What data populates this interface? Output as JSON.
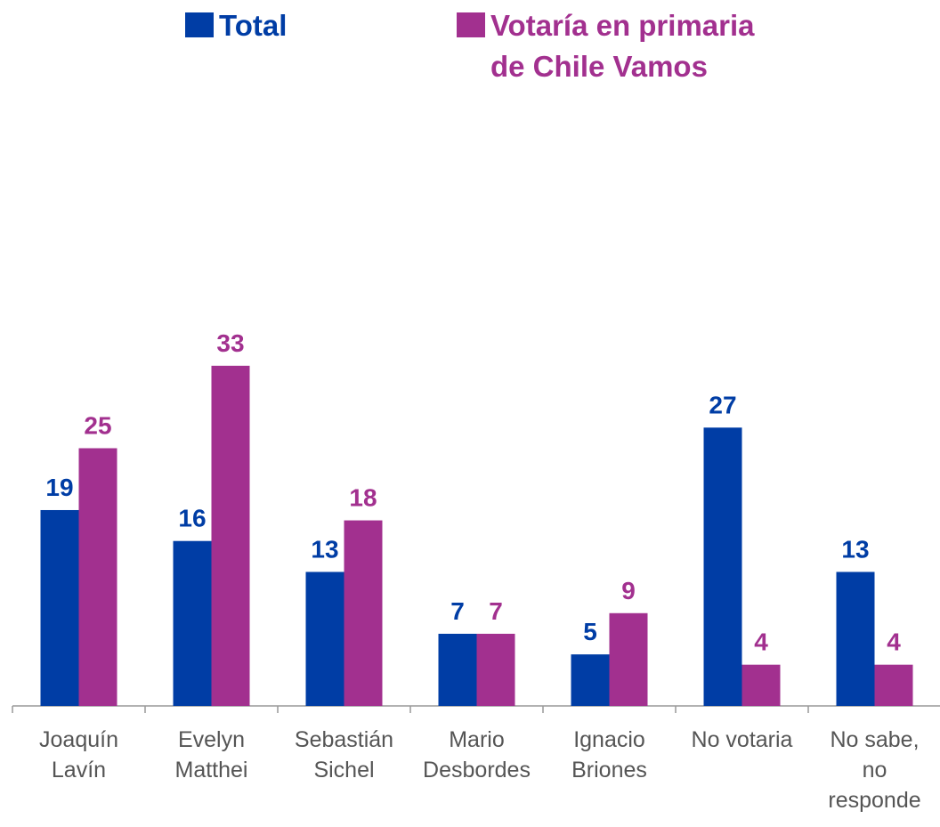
{
  "chart_data": {
    "type": "bar",
    "categories": [
      "Joaquín\nLavín",
      "Evelyn\nMatthei",
      "Sebastián\nSichel",
      "Mario\nDesbordes",
      "Ignacio\nBriones",
      "No votaria",
      "No sabe,\nno\nresponde"
    ],
    "series": [
      {
        "name": "Total",
        "color": "#003da5",
        "values": [
          19,
          16,
          13,
          7,
          5,
          27,
          13
        ]
      },
      {
        "name": "Votaría en primaria\nde Chile Vamos",
        "color": "#a2308f",
        "values": [
          25,
          33,
          18,
          7,
          9,
          4,
          4
        ]
      }
    ]
  }
}
